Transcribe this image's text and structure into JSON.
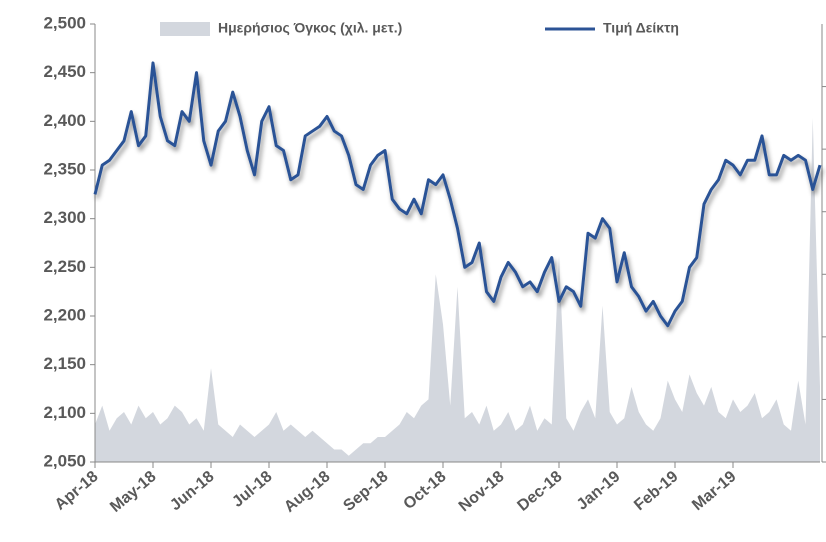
{
  "chart_data": {
    "type": "line",
    "categories": [
      "Apr-18",
      null,
      null,
      null,
      null,
      null,
      null,
      null,
      "May-18",
      null,
      null,
      null,
      null,
      null,
      null,
      null,
      "Jun-18",
      null,
      null,
      null,
      null,
      null,
      null,
      null,
      "Jul-18",
      null,
      null,
      null,
      null,
      null,
      null,
      null,
      "Aug-18",
      null,
      null,
      null,
      null,
      null,
      null,
      null,
      "Sep-18",
      null,
      null,
      null,
      null,
      null,
      null,
      null,
      "Oct-18",
      null,
      null,
      null,
      null,
      null,
      null,
      null,
      "Nov-18",
      null,
      null,
      null,
      null,
      null,
      null,
      null,
      "Dec-18",
      null,
      null,
      null,
      null,
      null,
      null,
      null,
      "Jan-19",
      null,
      null,
      null,
      null,
      null,
      null,
      null,
      "Feb-19",
      null,
      null,
      null,
      null,
      null,
      null,
      null,
      "Mar-19",
      null,
      null,
      null,
      null,
      null,
      null,
      null,
      null,
      null,
      null,
      null,
      null
    ],
    "series": [
      {
        "name": "Ημερήσιος Όγκος (χιλ. μετ.)",
        "type": "area",
        "axis": "y2",
        "color": "#d3d7de",
        "values": [
          0.6,
          0.9,
          0.5,
          0.7,
          0.8,
          0.6,
          0.9,
          0.7,
          0.8,
          0.6,
          0.7,
          0.9,
          0.8,
          0.6,
          0.7,
          0.5,
          1.5,
          0.6,
          0.5,
          0.4,
          0.6,
          0.5,
          0.4,
          0.5,
          0.6,
          0.8,
          0.5,
          0.6,
          0.5,
          0.4,
          0.5,
          0.4,
          0.3,
          0.2,
          0.2,
          0.1,
          0.2,
          0.3,
          0.3,
          0.4,
          0.4,
          0.5,
          0.6,
          0.8,
          0.7,
          0.9,
          1.0,
          3.0,
          2.2,
          0.9,
          2.8,
          0.7,
          0.8,
          0.6,
          0.9,
          0.5,
          0.6,
          0.8,
          0.5,
          0.6,
          0.9,
          0.5,
          0.7,
          0.6,
          3.3,
          0.7,
          0.5,
          0.8,
          1.0,
          0.7,
          2.5,
          0.8,
          0.6,
          0.7,
          1.2,
          0.8,
          0.6,
          0.5,
          0.7,
          1.3,
          1.0,
          0.8,
          1.4,
          1.1,
          0.9,
          1.2,
          0.8,
          0.7,
          1.0,
          0.8,
          0.9,
          1.1,
          0.7,
          0.8,
          1.0,
          0.6,
          0.5,
          1.3,
          0.6,
          5.5,
          1.2
        ]
      },
      {
        "name": "Τιμή Δείκτη",
        "type": "line",
        "color": "#2c5396",
        "values": [
          2325,
          2355,
          2360,
          2370,
          2380,
          2410,
          2375,
          2385,
          2460,
          2405,
          2380,
          2375,
          2410,
          2400,
          2450,
          2380,
          2355,
          2390,
          2400,
          2430,
          2405,
          2370,
          2345,
          2400,
          2415,
          2375,
          2370,
          2340,
          2345,
          2385,
          2390,
          2395,
          2405,
          2390,
          2385,
          2365,
          2335,
          2330,
          2355,
          2365,
          2370,
          2320,
          2310,
          2305,
          2320,
          2305,
          2340,
          2335,
          2345,
          2320,
          2290,
          2250,
          2255,
          2275,
          2225,
          2215,
          2240,
          2255,
          2245,
          2230,
          2235,
          2225,
          2245,
          2260,
          2215,
          2230,
          2225,
          2210,
          2285,
          2280,
          2300,
          2290,
          2235,
          2265,
          2230,
          2220,
          2205,
          2215,
          2200,
          2190,
          2205,
          2215,
          2250,
          2260,
          2315,
          2330,
          2340,
          2360,
          2355,
          2345,
          2360,
          2360,
          2385,
          2345,
          2345,
          2365,
          2360,
          2365,
          2360,
          2330,
          2355
        ]
      }
    ],
    "ylim": [
      2050,
      2500
    ],
    "yticks": [
      {
        "value": 2050,
        "label": "2,050"
      },
      {
        "value": 2100,
        "label": "2,100"
      },
      {
        "value": 2150,
        "label": "2,150"
      },
      {
        "value": 2200,
        "label": "2,200"
      },
      {
        "value": 2250,
        "label": "2,250"
      },
      {
        "value": 2300,
        "label": "2,300"
      },
      {
        "value": 2350,
        "label": "2,350"
      },
      {
        "value": 2400,
        "label": "2,400"
      },
      {
        "value": 2450,
        "label": "2,450"
      },
      {
        "value": 2500,
        "label": "2,500"
      }
    ],
    "y2lim": [
      0,
      7
    ],
    "y2ticks": [
      0,
      1,
      2,
      3,
      4,
      5,
      6
    ],
    "legend": "top"
  }
}
